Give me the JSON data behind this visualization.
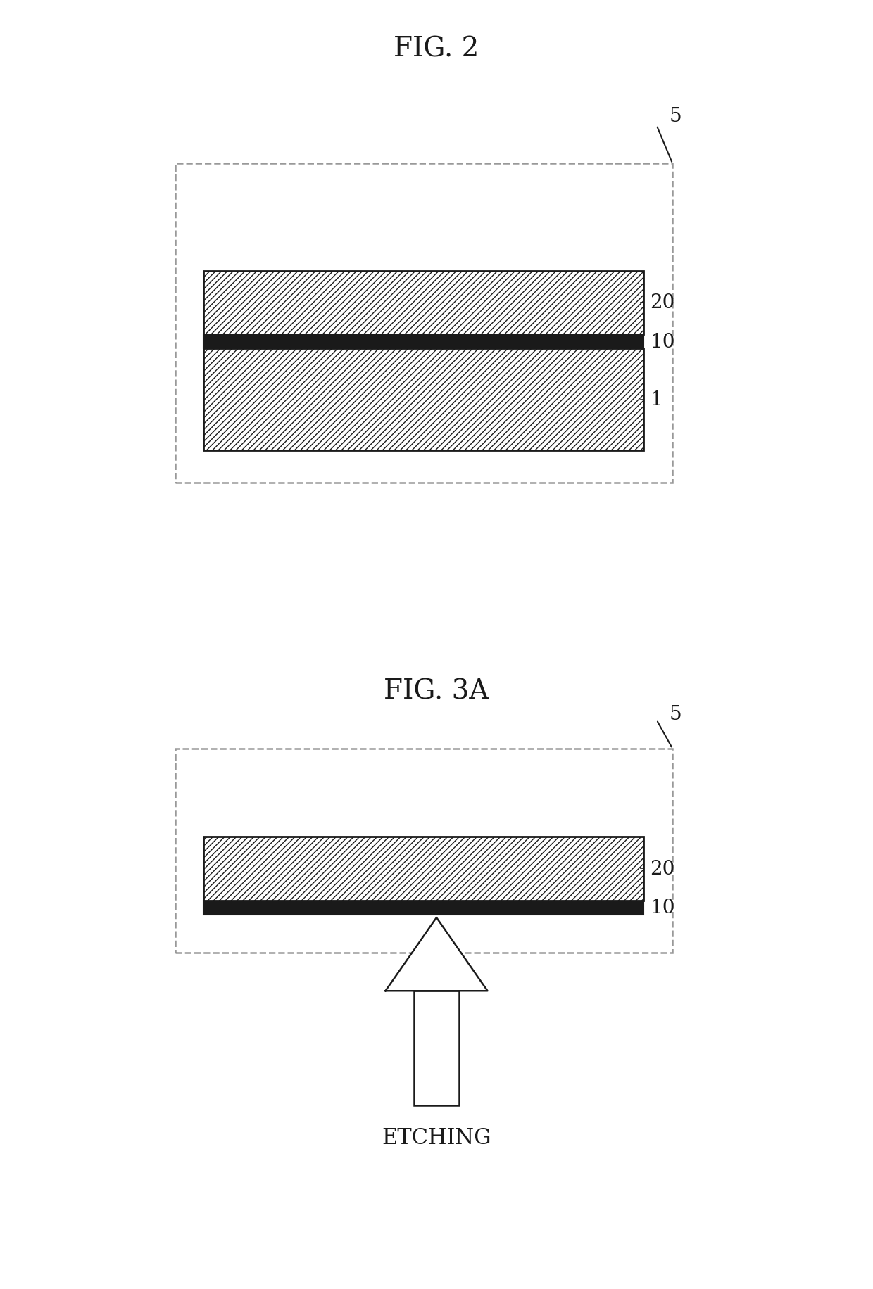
{
  "fig2_title": "FIG. 2",
  "fig3a_title": "FIG. 3A",
  "fig2_label5": "5",
  "fig2_label20": "20",
  "fig2_label10": "10",
  "fig2_label1": "1",
  "fig3a_label5": "5",
  "fig3a_label20": "20",
  "fig3a_label10": "10",
  "etching_label": "ETCHING",
  "bg_color": "#ffffff",
  "line_color": "#1a1a1a",
  "hatch_color": "#555555",
  "dashed_color": "#888888",
  "title_fontsize": 28,
  "label_fontsize": 20,
  "etching_fontsize": 22
}
